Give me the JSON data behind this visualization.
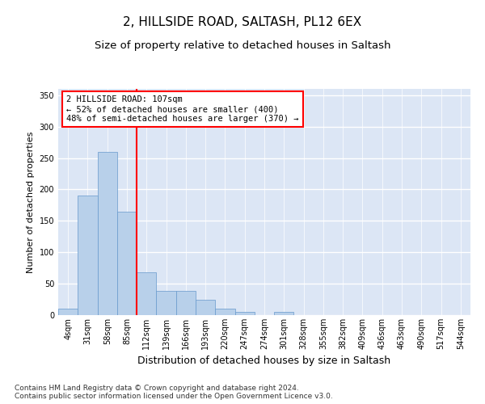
{
  "title_line1": "2, HILLSIDE ROAD, SALTASH, PL12 6EX",
  "title_line2": "Size of property relative to detached houses in Saltash",
  "xlabel": "Distribution of detached houses by size in Saltash",
  "ylabel": "Number of detached properties",
  "categories": [
    "4sqm",
    "31sqm",
    "58sqm",
    "85sqm",
    "112sqm",
    "139sqm",
    "166sqm",
    "193sqm",
    "220sqm",
    "247sqm",
    "274sqm",
    "301sqm",
    "328sqm",
    "355sqm",
    "382sqm",
    "409sqm",
    "436sqm",
    "463sqm",
    "490sqm",
    "517sqm",
    "544sqm"
  ],
  "values": [
    10,
    190,
    260,
    165,
    68,
    38,
    38,
    25,
    10,
    5,
    0,
    5,
    0,
    0,
    0,
    0,
    0,
    0,
    0,
    0,
    0
  ],
  "bar_color": "#b8d0ea",
  "bar_edge_color": "#6699cc",
  "vline_color": "red",
  "vline_pos": 3.5,
  "annotation_text": "2 HILLSIDE ROAD: 107sqm\n← 52% of detached houses are smaller (400)\n48% of semi-detached houses are larger (370) →",
  "annotation_box_color": "white",
  "annotation_box_edge": "red",
  "background_color": "#dce6f5",
  "grid_color": "white",
  "ylim": [
    0,
    360
  ],
  "yticks": [
    0,
    50,
    100,
    150,
    200,
    250,
    300,
    350
  ],
  "footnote": "Contains HM Land Registry data © Crown copyright and database right 2024.\nContains public sector information licensed under the Open Government Licence v3.0.",
  "title_fontsize": 11,
  "subtitle_fontsize": 9.5,
  "xlabel_fontsize": 9,
  "ylabel_fontsize": 8,
  "tick_fontsize": 7,
  "annotation_fontsize": 7.5,
  "footnote_fontsize": 6.5
}
